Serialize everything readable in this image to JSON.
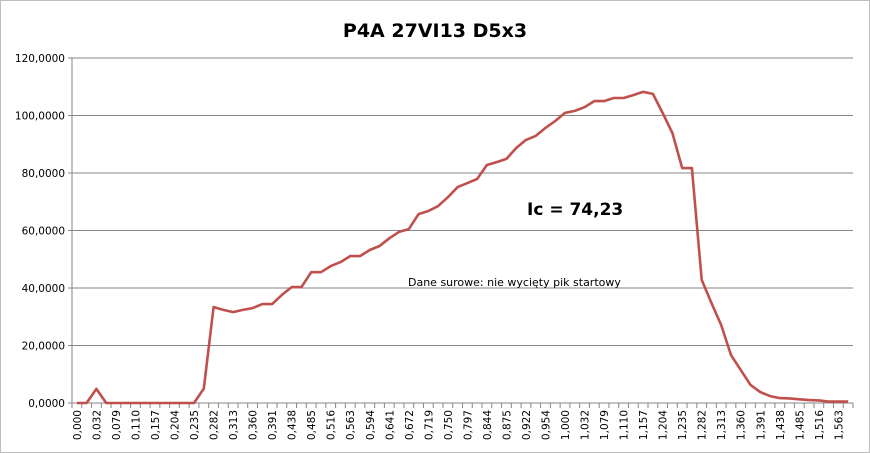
{
  "chart_data": {
    "type": "line",
    "title": "P4A 27VI13  D5x3",
    "xlabel": "",
    "ylabel": "",
    "ylim": [
      0,
      120000
    ],
    "y_ticks": [
      "0,0000",
      "20,0000",
      "40,0000",
      "60,0000",
      "80,0000",
      "100,0000",
      "120,0000"
    ],
    "x_tick_labels": [
      "0,000",
      "0,032",
      "0,079",
      "0,110",
      "0,157",
      "0,204",
      "0,235",
      "0,282",
      "0,313",
      "0,360",
      "0,391",
      "0,438",
      "0,485",
      "0,516",
      "0,563",
      "0,594",
      "0,641",
      "0,672",
      "0,719",
      "0,750",
      "0,797",
      "0,844",
      "0,875",
      "0,922",
      "0,954",
      "1,000",
      "1,032",
      "1,079",
      "1,110",
      "1,157",
      "1,204",
      "1,235",
      "1,282",
      "1,313",
      "1,360",
      "1,391",
      "1,438",
      "1,485",
      "1,516",
      "1,563"
    ],
    "x_tick_label_every": 2,
    "grid": "horizontal",
    "legend": "none",
    "series": [
      {
        "color": "#c0504d",
        "values": [
          0,
          0,
          4900,
          0,
          0,
          0,
          0,
          0,
          0,
          0,
          0,
          0,
          0,
          5000,
          33400,
          32400,
          31600,
          32400,
          33000,
          34400,
          34400,
          37600,
          40300,
          40300,
          45500,
          45500,
          47600,
          49000,
          51100,
          51100,
          53200,
          54600,
          57300,
          59500,
          60500,
          65700,
          66800,
          68500,
          71600,
          75100,
          76500,
          77900,
          82800,
          83800,
          84900,
          88700,
          91500,
          92900,
          95700,
          98100,
          100900,
          101600,
          102900,
          105000,
          105000,
          106100,
          106100,
          107100,
          108200,
          107500,
          100900,
          93900,
          81700,
          81700,
          42800,
          34800,
          27100,
          16700,
          11500,
          6300,
          3800,
          2400,
          1700,
          1600,
          1300,
          1000,
          900,
          500,
          500,
          500
        ]
      }
    ],
    "annotations": [
      "Ic = 74,23",
      "Dane surowe: nie wycięty pik startowy"
    ]
  }
}
